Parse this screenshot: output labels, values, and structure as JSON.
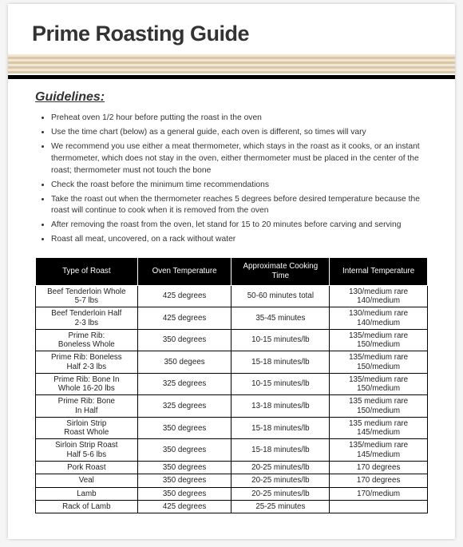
{
  "title": "Prime Roasting Guide",
  "guidelines_heading": "Guidelines:",
  "guidelines": [
    "Preheat oven 1/2 hour before putting the roast in the oven",
    "Use the time chart (below) as a general guide, each oven is different, so times will vary",
    "We recommend you use either a meat thermometer, which stays in the roast as it cooks, or an instant thermometer, which does not stay in the oven, either thermometer must be placed in the center of the roast; thermometer must not touch the bone",
    "Check the roast before the minimum time recommendations",
    "Take the roast out when the thermometer reaches 5 degrees before desired temperature because the roast will continue to cook when it is removed from the oven",
    "After removing the roast from the oven, let stand for 15 to 20 minutes before carving and serving",
    "Roast all meat, uncovered, on a rack without water"
  ],
  "table": {
    "columns": [
      "Type of Roast",
      "Oven Temperature",
      "Approximate Cooking Time",
      "Internal Temperature"
    ],
    "rows": [
      [
        "Beef Tenderloin Whole 5-7 lbs",
        "425 degrees",
        "50-60 minutes total",
        "130/medium rare 140/medium"
      ],
      [
        "Beef Tenderloin Half 2-3 lbs",
        "425 degrees",
        "35-45 minutes",
        "130/medium rare 140/medium"
      ],
      [
        "Prime Rib: Boneless Whole",
        "350 degrees",
        "10-15 minutes/lb",
        "135/medium rare 150/medium"
      ],
      [
        "Prime Rib: Boneless Half 2-3 lbs",
        "350 degees",
        "15-18 minutes/lb",
        "135/medium rare 150/medium"
      ],
      [
        "Prime Rib: Bone In Whole 16-20 lbs",
        "325 degrees",
        "10-15 minutes/lb",
        "135/medium rare 150/medium"
      ],
      [
        "Prime Rib: Bone In Half",
        "325 degrees",
        "13-18 minutes/lb",
        "135 medium rare 150/medium"
      ],
      [
        "Sirloin Strip Roast Whole",
        "350 degrees",
        "15-18 minutes/lb",
        "135 medium rare 145/medium"
      ],
      [
        "Sirloin Strip Roast Half 5-6 lbs",
        "350 degrees",
        "15-18 minutes/lb",
        "135/medium rare 145/medium"
      ],
      [
        "Pork Roast",
        "350 degrees",
        "20-25 minutes/lb",
        "170 degrees"
      ],
      [
        "Veal",
        "350 degrees",
        "20-25 minutes/lb",
        "170 degrees"
      ],
      [
        "Lamb",
        "350 degrees",
        "20-25 minutes/lb",
        "170/medium"
      ],
      [
        "Rack of Lamb",
        "425 degrees",
        "25-25 minutes",
        ""
      ]
    ]
  }
}
